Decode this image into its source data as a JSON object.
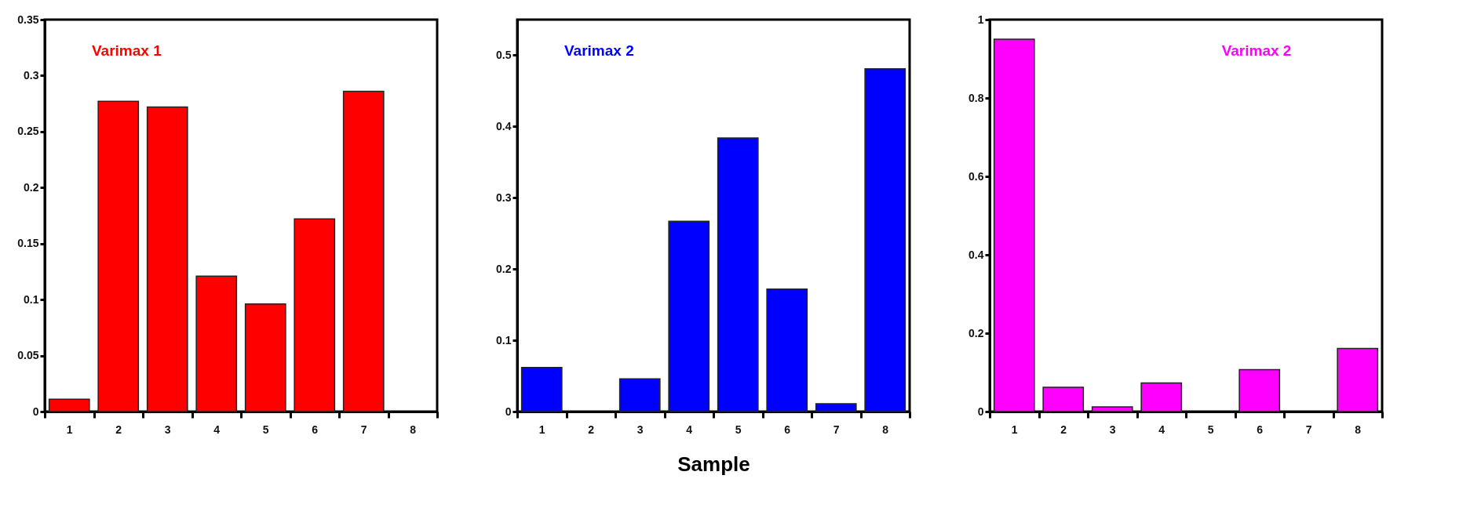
{
  "chart_data": [
    {
      "type": "bar",
      "categories": [
        "1",
        "2",
        "3",
        "4",
        "5",
        "6",
        "7",
        "8"
      ],
      "values": [
        0.011,
        0.277,
        0.272,
        0.121,
        0.096,
        0.172,
        0.286,
        0
      ],
      "color": "#ff0000",
      "ylim": [
        0,
        0.35
      ],
      "yticks": [
        0,
        0.05,
        0.1,
        0.15,
        0.2,
        0.25,
        0.3,
        0.35
      ],
      "annotations": [
        "Varimax 1"
      ],
      "grid": false
    },
    {
      "type": "bar",
      "categories": [
        "1",
        "2",
        "3",
        "4",
        "5",
        "6",
        "7",
        "8"
      ],
      "values": [
        0.062,
        0,
        0.046,
        0.267,
        0.384,
        0.172,
        0.011,
        0.481
      ],
      "color": "#0000ff",
      "ylim": [
        0,
        0.55
      ],
      "yticks": [
        0,
        0.1,
        0.2,
        0.3,
        0.4,
        0.5
      ],
      "xlabel": "Sample",
      "annotations": [
        "Varimax 2"
      ],
      "grid": false
    },
    {
      "type": "bar",
      "categories": [
        "1",
        "2",
        "3",
        "4",
        "5",
        "6",
        "7",
        "8"
      ],
      "values": [
        0.95,
        0.062,
        0.012,
        0.073,
        0,
        0.107,
        0,
        0.161
      ],
      "color": "#ff00ff",
      "ylim": [
        0,
        1
      ],
      "yticks": [
        0,
        0.2,
        0.4,
        0.6,
        0.8,
        1
      ],
      "annotations": [
        "Varimax 2"
      ],
      "grid": false
    }
  ]
}
